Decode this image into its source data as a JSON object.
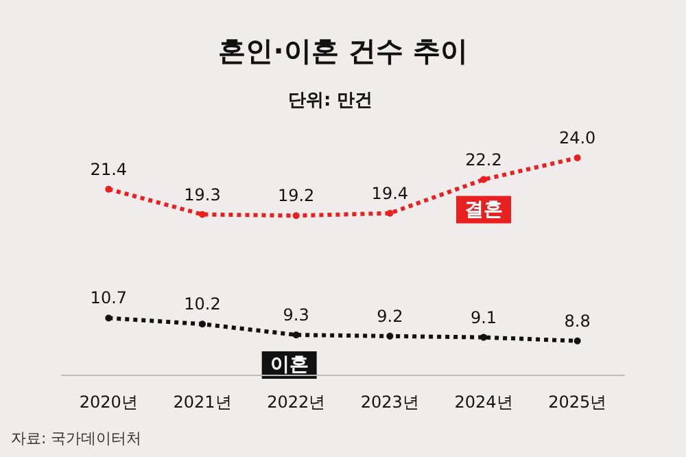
{
  "chart_data": {
    "type": "line",
    "title": "혼인·이혼 건수 추이",
    "subtitle": "단위: 만건",
    "categories": [
      "2020년",
      "2021년",
      "2022년",
      "2023년",
      "2024년",
      "2025년"
    ],
    "series": [
      {
        "name": "결혼",
        "color": "#e8201f",
        "values": [
          21.4,
          19.3,
          19.2,
          19.4,
          22.2,
          24.0
        ],
        "value_labels": [
          "21.4",
          "19.3",
          "19.2",
          "19.4",
          "22.2",
          "24.0"
        ]
      },
      {
        "name": "이혼",
        "color": "#111111",
        "values": [
          10.7,
          10.2,
          9.3,
          9.2,
          9.1,
          8.8
        ]
      }
    ],
    "data_labels": true,
    "marker": "circle",
    "line_style": "dotted",
    "legend": false,
    "grid": false,
    "annotations": [
      "자료: 국가데이터처"
    ]
  }
}
